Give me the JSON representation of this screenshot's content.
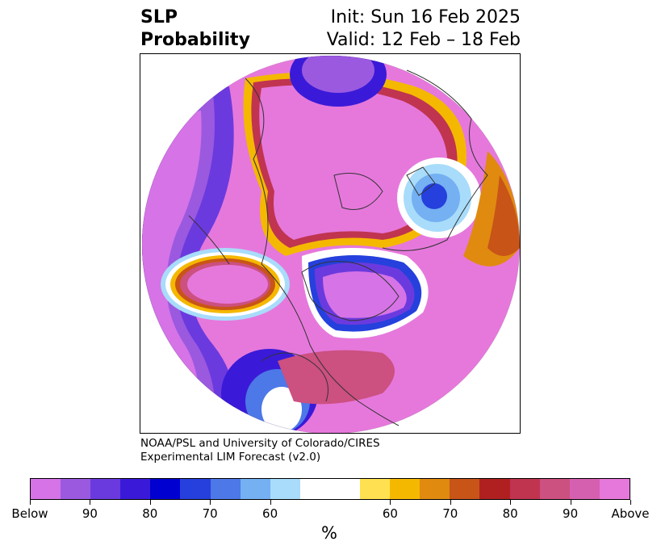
{
  "title": {
    "left_line1": "SLP",
    "left_line2": "Probability",
    "right_line1": "Init: Sun 16 Feb 2025",
    "right_line2": "Valid: 12 Feb – 18 Feb"
  },
  "credit": {
    "line1": "NOAA/PSL and University of Colorado/CIRES",
    "line2": "Experimental LIM Forecast (v2.0)"
  },
  "colorbar": {
    "colors": [
      "#d673e6",
      "#9b59e0",
      "#6b3ade",
      "#3a1ad8",
      "#0000d0",
      "#2540dc",
      "#4d78e8",
      "#74b0f2",
      "#a8dcfa",
      "#ffffff",
      "#ffffff",
      "#ffe050",
      "#f5b800",
      "#e08a10",
      "#c85418",
      "#b02020",
      "#c03450",
      "#cc5080",
      "#d660b0",
      "#e678dc"
    ],
    "labels": [
      "Below",
      "90",
      "80",
      "70",
      "60",
      "60",
      "70",
      "80",
      "90",
      "Above"
    ],
    "unit": "%"
  }
}
